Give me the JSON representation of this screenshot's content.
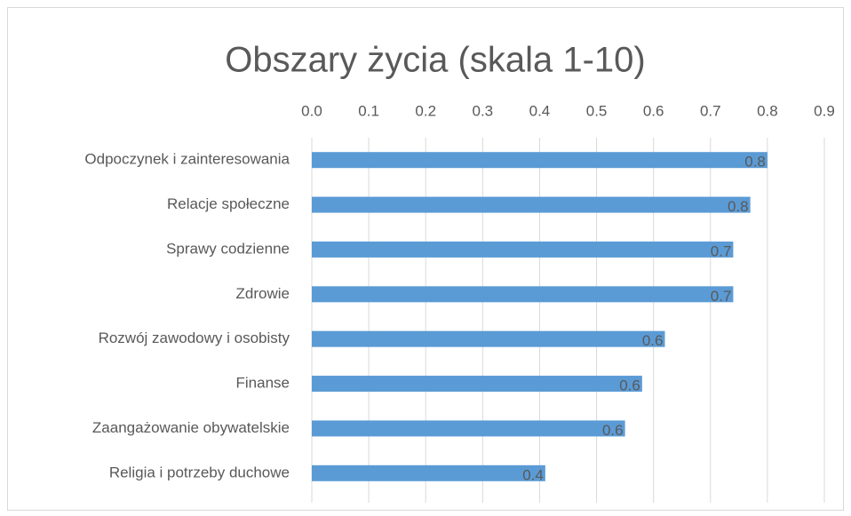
{
  "chart_data": {
    "type": "barh",
    "title": "Obszary życia (skala 1-10)",
    "categories": [
      "Odpoczynek i zainteresowania",
      "Relacje społeczne",
      "Sprawy codzienne",
      "Zdrowie",
      "Rozwój zawodowy i osobisty",
      "Finanse",
      "Zaangażowanie obywatelskie",
      "Religia i potrzeby duchowe"
    ],
    "values": [
      0.8,
      0.77,
      0.74,
      0.74,
      0.62,
      0.58,
      0.55,
      0.41
    ],
    "value_labels": [
      "0.8",
      "0.8",
      "0.7",
      "0.7",
      "0.6",
      "0.6",
      "0.6",
      "0.4"
    ],
    "color": "#5b9bd5",
    "xlim": [
      0,
      0.9
    ],
    "xticks": [
      {
        "value": 0,
        "label": "0.0"
      },
      0.1,
      0.2,
      0.3,
      0.4,
      0.5,
      0.6,
      0.7,
      0.8,
      0.9
    ],
    "grid": true
  }
}
